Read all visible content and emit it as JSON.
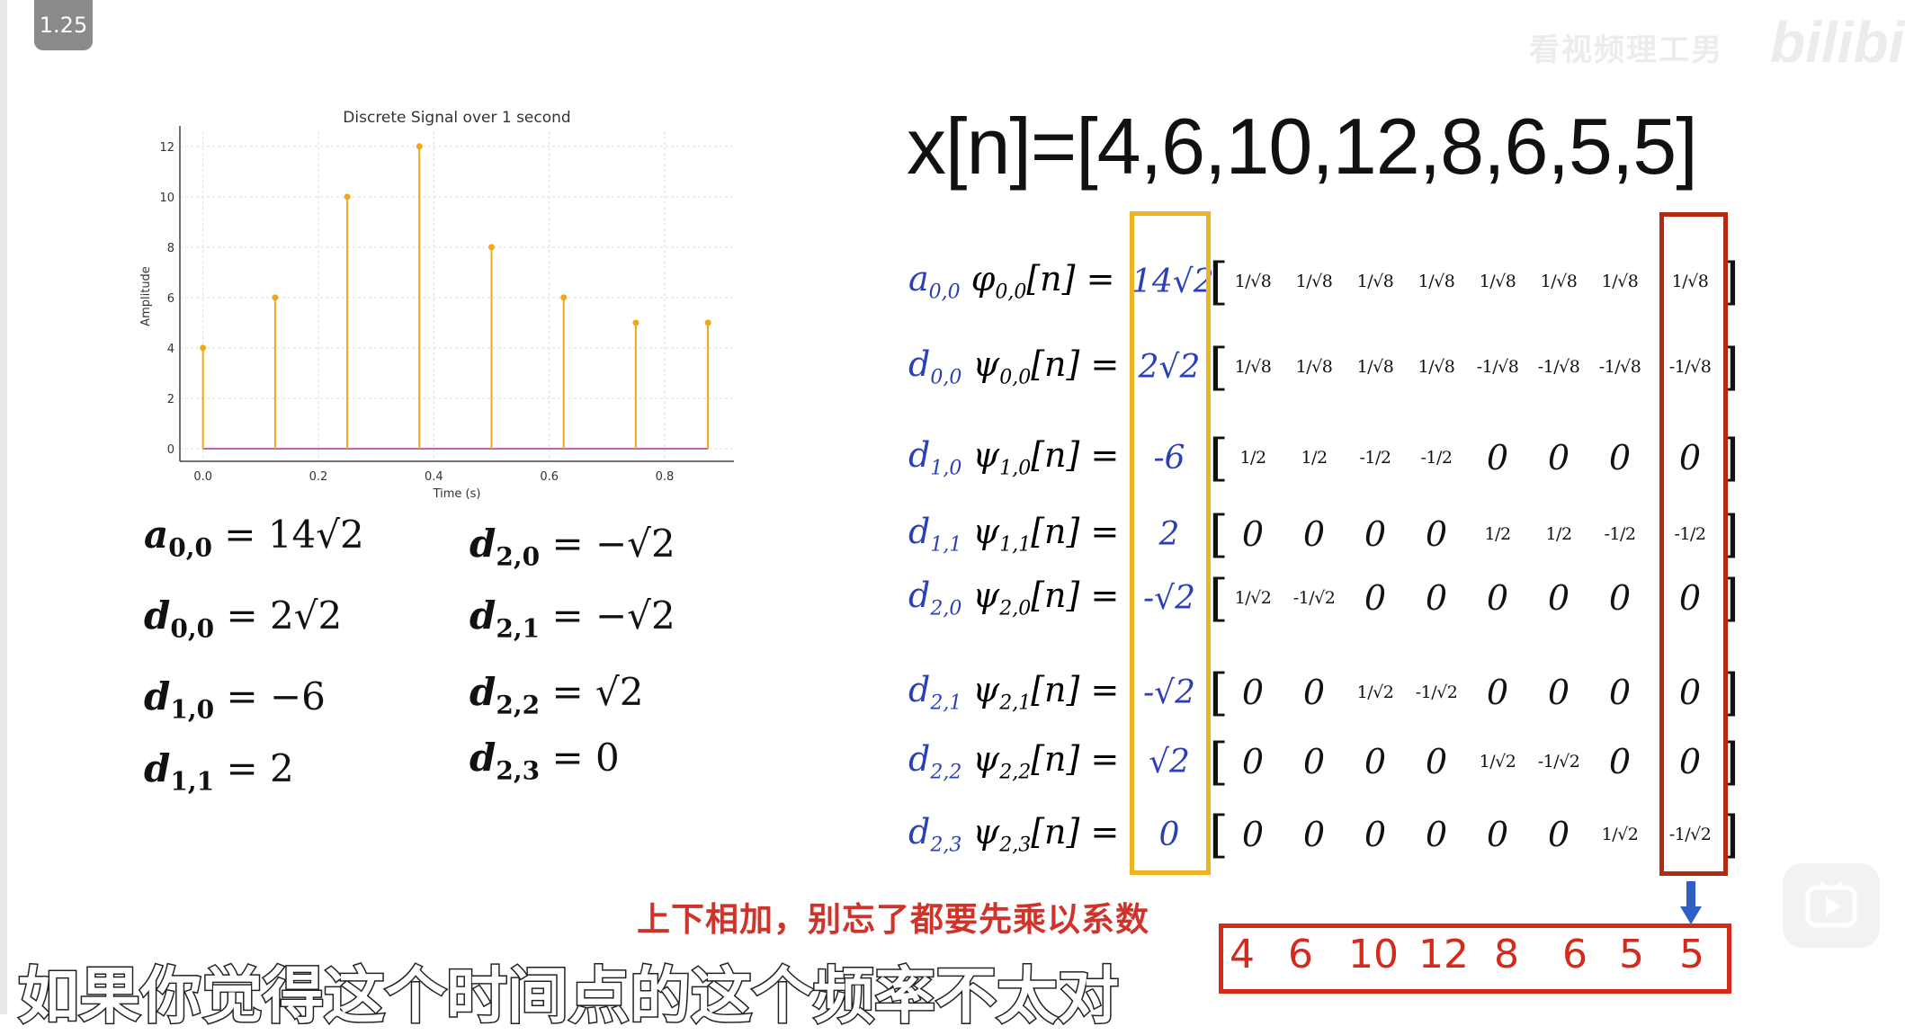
{
  "player": {
    "speed_label": "1.25",
    "watermark": "看视频理工男",
    "logo": "bilibili",
    "play_icon": "play-icon"
  },
  "chart_data": {
    "type": "stem",
    "title": "Discrete Signal over 1 second",
    "xlabel": "Time (s)",
    "ylabel": "Amplitude",
    "x": [
      0.0,
      0.125,
      0.25,
      0.375,
      0.5,
      0.625,
      0.75,
      0.875
    ],
    "values": [
      4,
      6,
      10,
      12,
      8,
      6,
      5,
      5
    ],
    "xticks": [
      "0.0",
      "0.2",
      "0.4",
      "0.6",
      "0.8"
    ],
    "yticks": [
      "0",
      "2",
      "4",
      "6",
      "8",
      "10",
      "12"
    ],
    "xlim": [
      -0.04,
      0.92
    ],
    "ylim": [
      -0.5,
      12.6
    ],
    "grid": true,
    "stem_color": "#f0a818",
    "baseline_color": "#c060c0"
  },
  "coefficients_left": [
    {
      "sym": "a",
      "sub": "0,0",
      "rhs": "= 14√2"
    },
    {
      "sym": "d",
      "sub": "0,0",
      "rhs": "= 2√2"
    },
    {
      "sym": "d",
      "sub": "1,0",
      "rhs": "= −6"
    },
    {
      "sym": "d",
      "sub": "1,1",
      "rhs": "= 2"
    }
  ],
  "coefficients_right": [
    {
      "sym": "d",
      "sub": "2,0",
      "rhs": "= −√2"
    },
    {
      "sym": "d",
      "sub": "2,1",
      "rhs": "= −√2"
    },
    {
      "sym": "d",
      "sub": "2,2",
      "rhs": "=   √2"
    },
    {
      "sym": "d",
      "sub": "2,3",
      "rhs": "=     0"
    }
  ],
  "signal_title": "x[n]=[4,6,10,12,8,6,5,5]",
  "rows": [
    {
      "c": "a",
      "csub": "0,0",
      "f": "φ",
      "fsub": "0,0",
      "tail": "[n] =",
      "coef": "14√2",
      "vals": [
        "1/√8",
        "1/√8",
        "1/√8",
        "1/√8",
        "1/√8",
        "1/√8",
        "1/√8",
        "1/√8"
      ]
    },
    {
      "c": "d",
      "csub": "0,0",
      "f": "ψ",
      "fsub": "0,0",
      "tail": "[n] =",
      "coef": "2√2",
      "vals": [
        "1/√8",
        "1/√8",
        "1/√8",
        "1/√8",
        "-1/√8",
        "-1/√8",
        "-1/√8",
        "-1/√8"
      ]
    },
    {
      "c": "d",
      "csub": "1,0",
      "f": "ψ",
      "fsub": "1,0",
      "tail": "[n] =",
      "coef": "-6",
      "vals": [
        "1/2",
        "1/2",
        "-1/2",
        "-1/2",
        "0",
        "0",
        "0",
        "0"
      ]
    },
    {
      "c": "d",
      "csub": "1,1",
      "f": "ψ",
      "fsub": "1,1",
      "tail": "[n] =",
      "coef": "2",
      "vals": [
        "0",
        "0",
        "0",
        "0",
        "1/2",
        "1/2",
        "-1/2",
        "-1/2"
      ]
    },
    {
      "c": "d",
      "csub": "2,0",
      "f": "ψ",
      "fsub": "2,0",
      "tail": "[n] =",
      "coef": "-√2",
      "vals": [
        "1/√2",
        "-1/√2",
        "0",
        "0",
        "0",
        "0",
        "0",
        "0"
      ]
    },
    {
      "c": "d",
      "csub": "2,1",
      "f": "ψ",
      "fsub": "2,1",
      "tail": "[n] =",
      "coef": "-√2",
      "vals": [
        "0",
        "0",
        "1/√2",
        "-1/√2",
        "0",
        "0",
        "0",
        "0"
      ]
    },
    {
      "c": "d",
      "csub": "2,2",
      "f": "ψ",
      "fsub": "2,2",
      "tail": "[n] =",
      "coef": "√2",
      "vals": [
        "0",
        "0",
        "0",
        "0",
        "1/√2",
        "-1/√2",
        "0",
        "0"
      ]
    },
    {
      "c": "d",
      "csub": "2,3",
      "f": "ψ",
      "fsub": "2,3",
      "tail": "[n] =",
      "coef": "0",
      "vals": [
        "0",
        "0",
        "0",
        "0",
        "0",
        "0",
        "1/√2",
        "-1/√2"
      ]
    }
  ],
  "result_values": [
    "4",
    "6",
    "10",
    "12",
    "8",
    "6",
    "5",
    "5"
  ],
  "hint_text": "上下相加，别忘了都要先乘以系数",
  "subtitle_text": "如果你觉得这个时间点的这个频率不太对",
  "colors": {
    "coef_box": "#f0b323",
    "column_box": "#b32a14",
    "result": "#d42a1c",
    "coef_text": "#2a3fb8",
    "arrow": "#2f5fc4"
  }
}
